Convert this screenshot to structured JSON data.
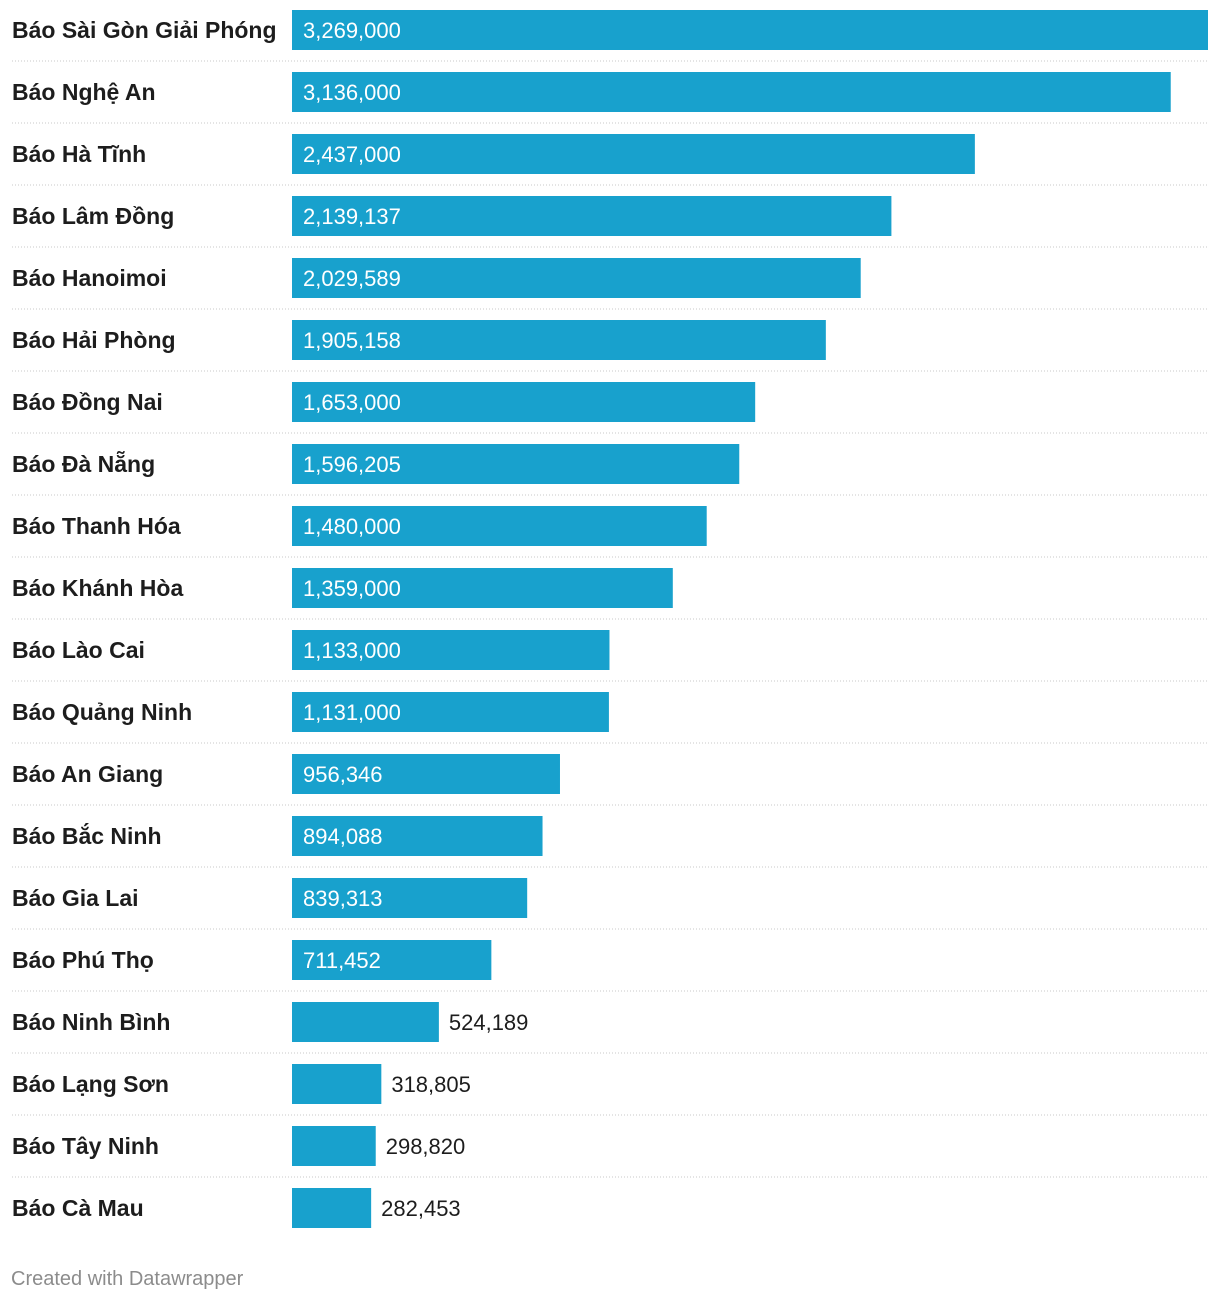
{
  "chart_data": {
    "type": "bar",
    "orientation": "horizontal",
    "categories": [
      "Báo Sài Gòn Giải Phóng",
      "Báo Nghệ An",
      "Báo Hà Tĩnh",
      "Báo Lâm Đồng",
      "Báo Hanoimoi",
      "Báo Hải Phòng",
      "Báo Đồng Nai",
      "Báo Đà Nẵng",
      "Báo Thanh Hóa",
      "Báo Khánh Hòa",
      "Báo Lào Cai",
      "Báo Quảng Ninh",
      "Báo An Giang",
      "Báo Bắc Ninh",
      "Báo Gia Lai",
      "Báo Phú Thọ",
      "Báo Ninh Bình",
      "Báo Lạng Sơn",
      "Báo Tây Ninh",
      "Báo Cà Mau"
    ],
    "values": [
      3269000,
      3136000,
      2437000,
      2139137,
      2029589,
      1905158,
      1653000,
      1596205,
      1480000,
      1359000,
      1133000,
      1131000,
      956346,
      894088,
      839313,
      711452,
      524189,
      318805,
      298820,
      282453
    ],
    "value_labels": [
      "3,269,000",
      "3,136,000",
      "2,437,000",
      "2,139,137",
      "2,029,589",
      "1,905,158",
      "1,653,000",
      "1,596,205",
      "1,480,000",
      "1,359,000",
      "1,133,000",
      "1,131,000",
      "956,346",
      "894,088",
      "839,313",
      "711,452",
      "524,189",
      "318,805",
      "298,820",
      "282,453"
    ],
    "xlim": [
      0,
      3269000
    ],
    "bar_color": "#18a1cd",
    "grid": false,
    "legend": "none"
  },
  "footer": {
    "credit": "Created with Datawrapper"
  }
}
